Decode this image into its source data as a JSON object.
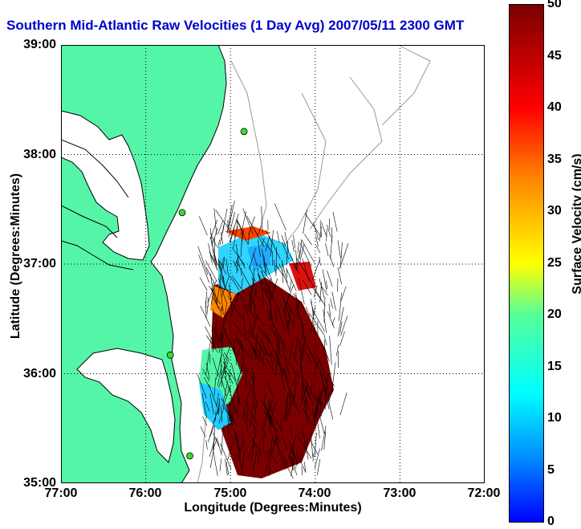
{
  "title": "Southern Mid-Atlantic Raw Velocities (1 Day Avg) 2007/05/11 2300 GMT",
  "axes": {
    "xlabel": "Longitude (Degrees:Minutes)",
    "ylabel": "Latitude (Degrees:Minutes)",
    "xticks": [
      "77:00",
      "76:00",
      "75:00",
      "74:00",
      "73:00",
      "72:00"
    ],
    "yticks": [
      "39:00",
      "38:00",
      "37:00",
      "36:00",
      "35:00"
    ]
  },
  "colorbar": {
    "label": "Surface Velocity (cm/s)",
    "ticks": [
      "50",
      "45",
      "40",
      "35",
      "30",
      "25",
      "20",
      "15",
      "10",
      "5",
      "0"
    ],
    "range": [
      0,
      50
    ]
  },
  "colors": {
    "title": "#0000cc",
    "land": "#55f5a8",
    "water": "#ffffff",
    "bathymetry": "#999999",
    "station": "#33dd33"
  },
  "extent": {
    "lon": [
      -77,
      -72
    ],
    "lat": [
      35,
      39
    ]
  },
  "stations": [
    {
      "lon": -74.84,
      "lat": 38.21
    },
    {
      "lon": -75.57,
      "lat": 37.47
    },
    {
      "lon": -75.71,
      "lat": 36.17
    },
    {
      "lon": -75.48,
      "lat": 35.25
    }
  ]
}
